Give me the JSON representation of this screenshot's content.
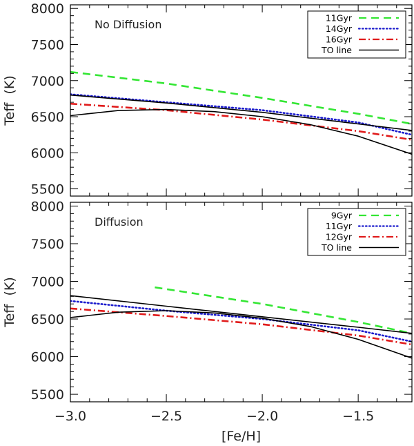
{
  "colors": {
    "green": "#33e633",
    "blue": "#1a1acc",
    "red": "#e01a1a",
    "black": "#000000"
  },
  "chart_data": [
    {
      "type": "line",
      "panel_label": "No Diffusion",
      "xlabel": "",
      "ylabel": "Teff  (K)",
      "xlim": [
        -3.0,
        -1.22
      ],
      "ylim": [
        5400,
        8050
      ],
      "xticks": [
        -3.0,
        -2.5,
        -2.0,
        -1.5
      ],
      "xtick_labels": [
        "",
        "",
        "",
        ""
      ],
      "yticks": [
        5500,
        6000,
        6500,
        7000,
        7500,
        8000
      ],
      "ytick_labels": [
        "5500",
        "6000",
        "6500",
        "7000",
        "7500",
        "8000"
      ],
      "legend_position": "top-right",
      "series": [
        {
          "name": "11Gyr",
          "color": "#33e633",
          "dash": "dashed",
          "x": [
            -3.0,
            -2.5,
            -2.0,
            -1.5,
            -1.22
          ],
          "y": [
            7120,
            6960,
            6760,
            6540,
            6400
          ]
        },
        {
          "name": "14Gyr",
          "color": "#1a1acc",
          "dash": "dotted",
          "x": [
            -3.0,
            -2.5,
            -2.0,
            -1.5,
            -1.22
          ],
          "y": [
            6810,
            6700,
            6590,
            6420,
            6250
          ]
        },
        {
          "name": "16Gyr",
          "color": "#e01a1a",
          "dash": "dashdot",
          "x": [
            -3.0,
            -2.5,
            -2.0,
            -1.5,
            -1.22
          ],
          "y": [
            6680,
            6590,
            6460,
            6300,
            6180
          ]
        },
        {
          "name": "TO line",
          "color": "#000000",
          "dash": "solid",
          "x": [
            -3.0,
            -2.5,
            -2.0,
            -1.5,
            -1.22
          ],
          "y": [
            6800,
            6690,
            6560,
            6400,
            6310
          ]
        },
        {
          "name": "TO line (curve)",
          "color": "#000000",
          "dash": "solid",
          "legend": false,
          "x": [
            -3.0,
            -2.75,
            -2.5,
            -2.25,
            -2.0,
            -1.75,
            -1.5,
            -1.22
          ],
          "y": [
            6515,
            6585,
            6600,
            6570,
            6500,
            6390,
            6230,
            5980
          ]
        }
      ]
    },
    {
      "type": "line",
      "panel_label": "Diffusion",
      "xlabel": "[Fe/H]",
      "ylabel": "Teff  (K)",
      "xlim": [
        -3.0,
        -1.22
      ],
      "ylim": [
        5400,
        8050
      ],
      "xticks": [
        -3.0,
        -2.5,
        -2.0,
        -1.5
      ],
      "xtick_labels": [
        "−3.0",
        "−2.5",
        "−2.0",
        "−1.5"
      ],
      "yticks": [
        5500,
        6000,
        6500,
        7000,
        7500,
        8000
      ],
      "ytick_labels": [
        "5500",
        "6000",
        "6500",
        "7000",
        "7500",
        "8000"
      ],
      "legend_position": "top-right",
      "series": [
        {
          "name": "9Gyr",
          "color": "#33e633",
          "dash": "dashed",
          "x": [
            -2.56,
            -2.0,
            -1.5,
            -1.22
          ],
          "y": [
            6920,
            6700,
            6460,
            6310
          ]
        },
        {
          "name": "11Gyr",
          "color": "#1a1acc",
          "dash": "dotted",
          "x": [
            -3.0,
            -2.5,
            -2.0,
            -1.5,
            -1.22
          ],
          "y": [
            6740,
            6610,
            6500,
            6350,
            6200
          ]
        },
        {
          "name": "12Gyr",
          "color": "#e01a1a",
          "dash": "dashdot",
          "x": [
            -3.0,
            -2.5,
            -2.0,
            -1.5,
            -1.22
          ],
          "y": [
            6640,
            6540,
            6430,
            6280,
            6160
          ]
        },
        {
          "name": "TO line",
          "color": "#000000",
          "dash": "solid",
          "x": [
            -3.0,
            -2.5,
            -2.0,
            -1.5,
            -1.22
          ],
          "y": [
            6810,
            6670,
            6530,
            6390,
            6310
          ]
        },
        {
          "name": "TO line (curve)",
          "color": "#000000",
          "dash": "solid",
          "legend": false,
          "x": [
            -3.0,
            -2.75,
            -2.5,
            -2.25,
            -2.0,
            -1.75,
            -1.5,
            -1.22
          ],
          "y": [
            6520,
            6590,
            6610,
            6580,
            6510,
            6400,
            6230,
            5980
          ]
        }
      ]
    }
  ]
}
